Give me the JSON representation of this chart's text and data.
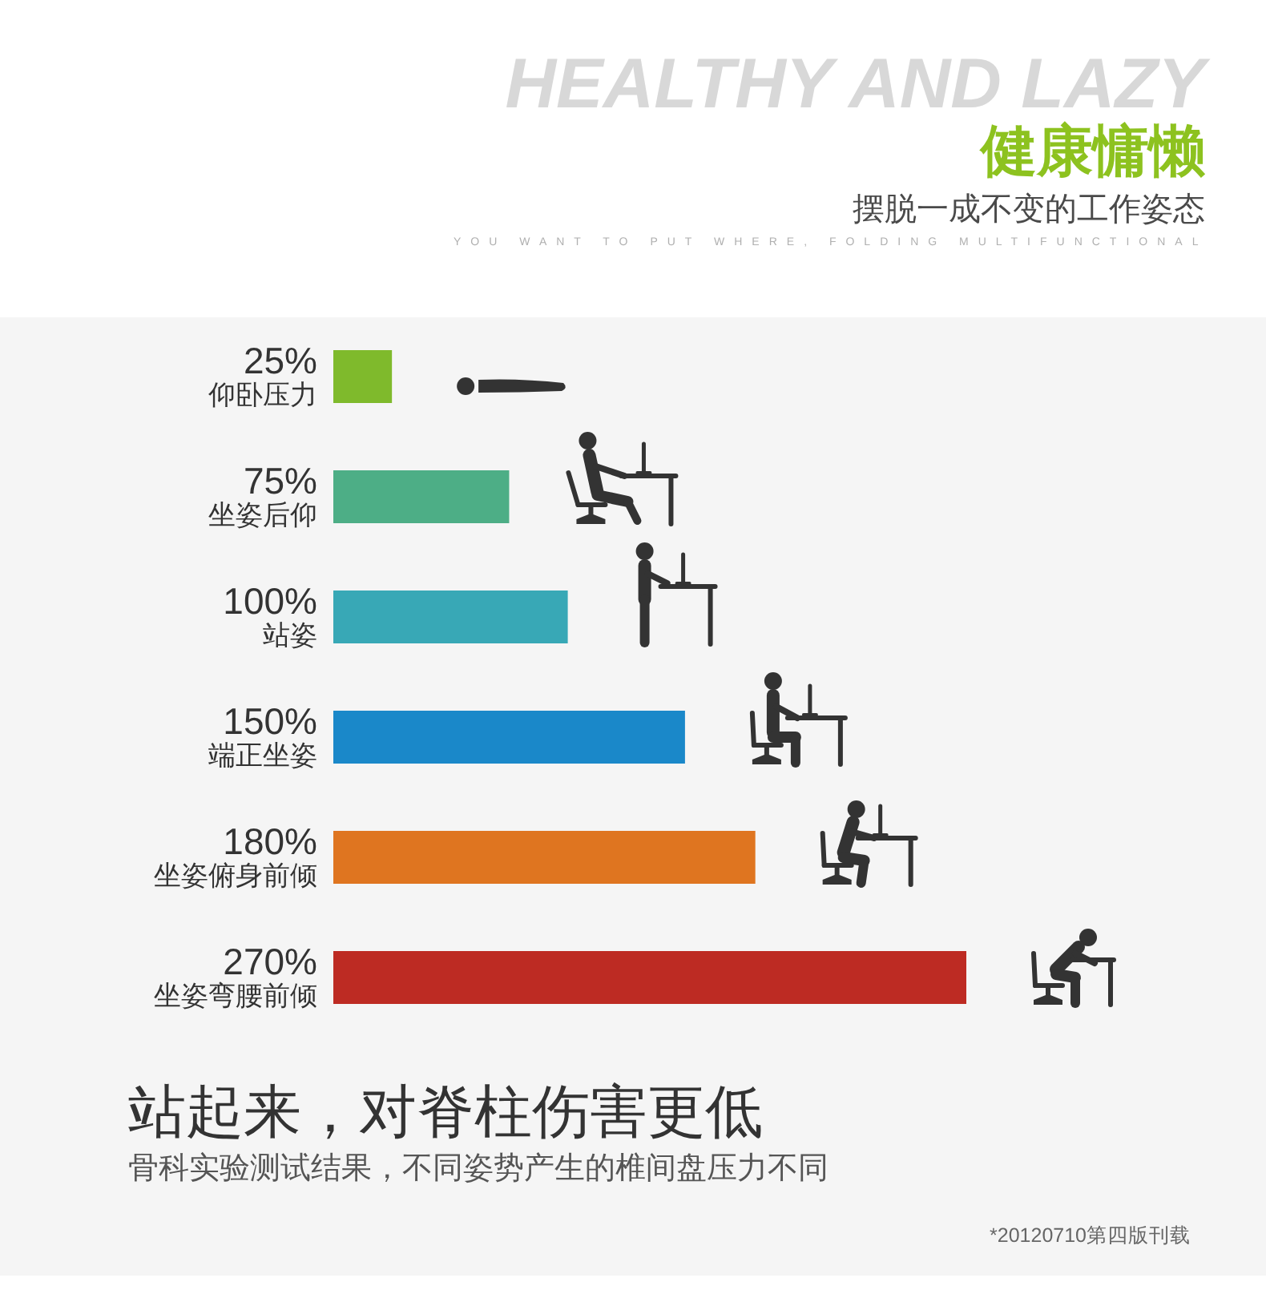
{
  "chart_data": {
    "type": "bar",
    "orientation": "horizontal",
    "title": "站起来，对脊柱伤害更低",
    "subtitle": "骨科实验测试结果，不同姿势产生的椎间盘压力不同",
    "annotations": [
      "HEALTHY AND LAZY",
      "健康慵懒",
      "摆脱一成不变的工作姿态",
      "YOU WANT TO PUT WHERE, FOLDING MULTIFUNCTIONAL",
      "*20120710第四版刊载"
    ],
    "categories": [
      "仰卧压力",
      "坐姿后仰",
      "站姿",
      "端正坐姿",
      "坐姿俯身前倾",
      "坐姿弯腰前倾"
    ],
    "values": [
      25,
      75,
      100,
      150,
      180,
      270
    ],
    "value_labels": [
      "25%",
      "75%",
      "100%",
      "150%",
      "180%",
      "270%"
    ],
    "colors": [
      "#7fba2c",
      "#4dae86",
      "#38a8b6",
      "#1a88c9",
      "#df7520",
      "#bd2b23"
    ]
  }
}
